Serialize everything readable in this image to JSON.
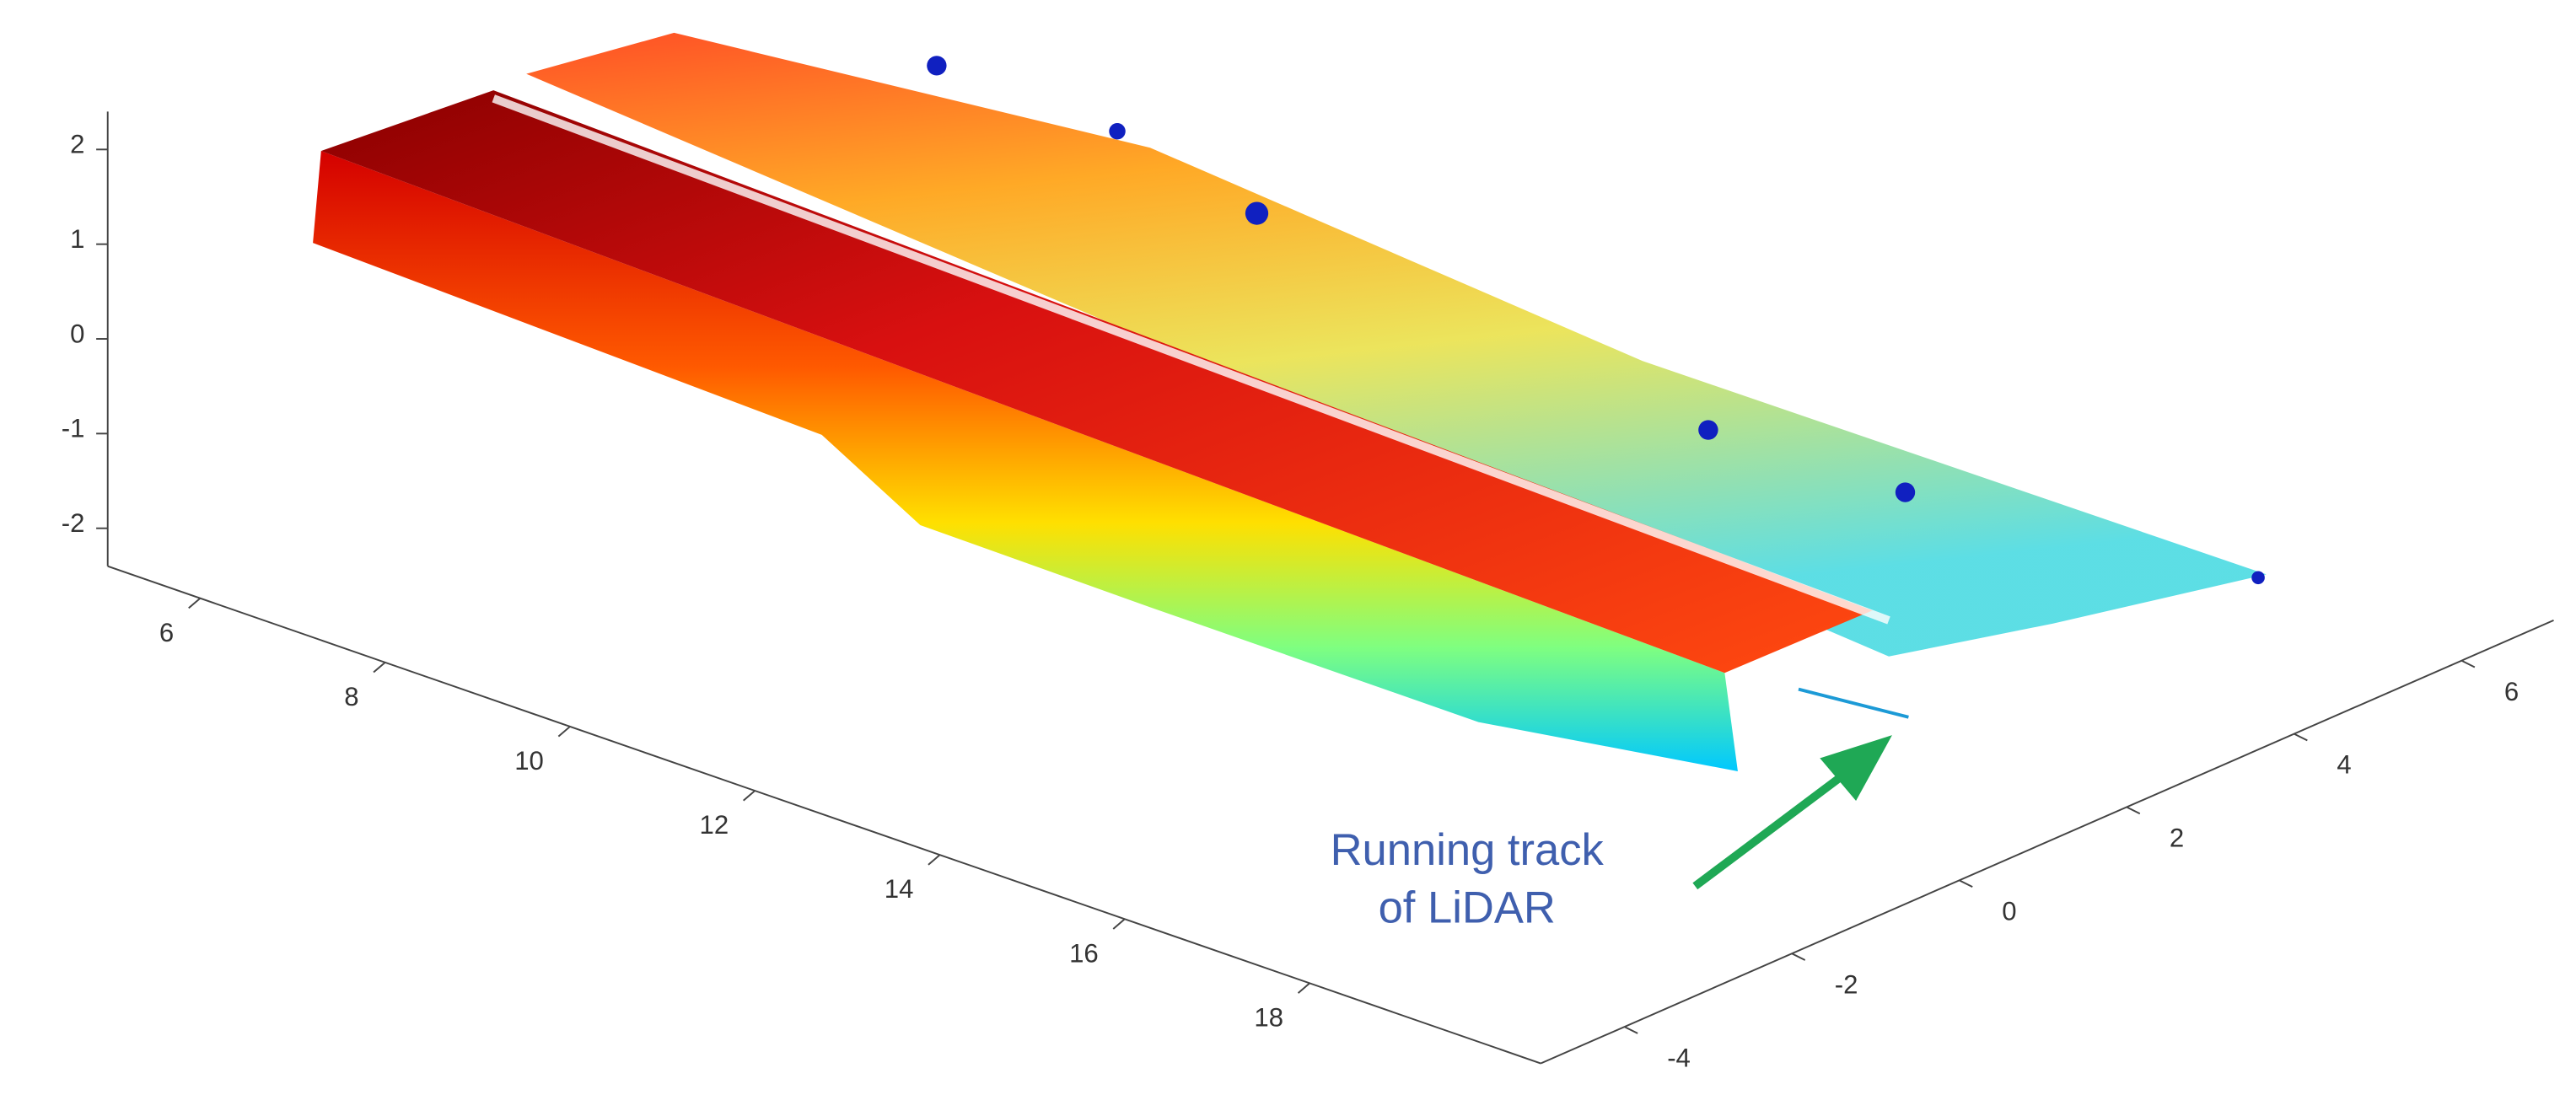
{
  "chart_data": {
    "type": "scatter3d",
    "annotation": [
      "Running track",
      "of LiDAR"
    ],
    "xlim": [
      5,
      20.5
    ],
    "xticks": [
      6,
      8,
      10,
      12,
      14,
      16,
      18
    ],
    "ylim": [
      -5,
      7.1
    ],
    "yticks": [
      -4,
      -2,
      0,
      2,
      4,
      6
    ],
    "zlim": [
      -2.4,
      2.4
    ],
    "zticks": [
      -2,
      -1,
      0,
      1,
      2
    ],
    "axis_color": "#444444",
    "annotation_color": "#3f5fae",
    "arrow_color": "#1fa855"
  }
}
